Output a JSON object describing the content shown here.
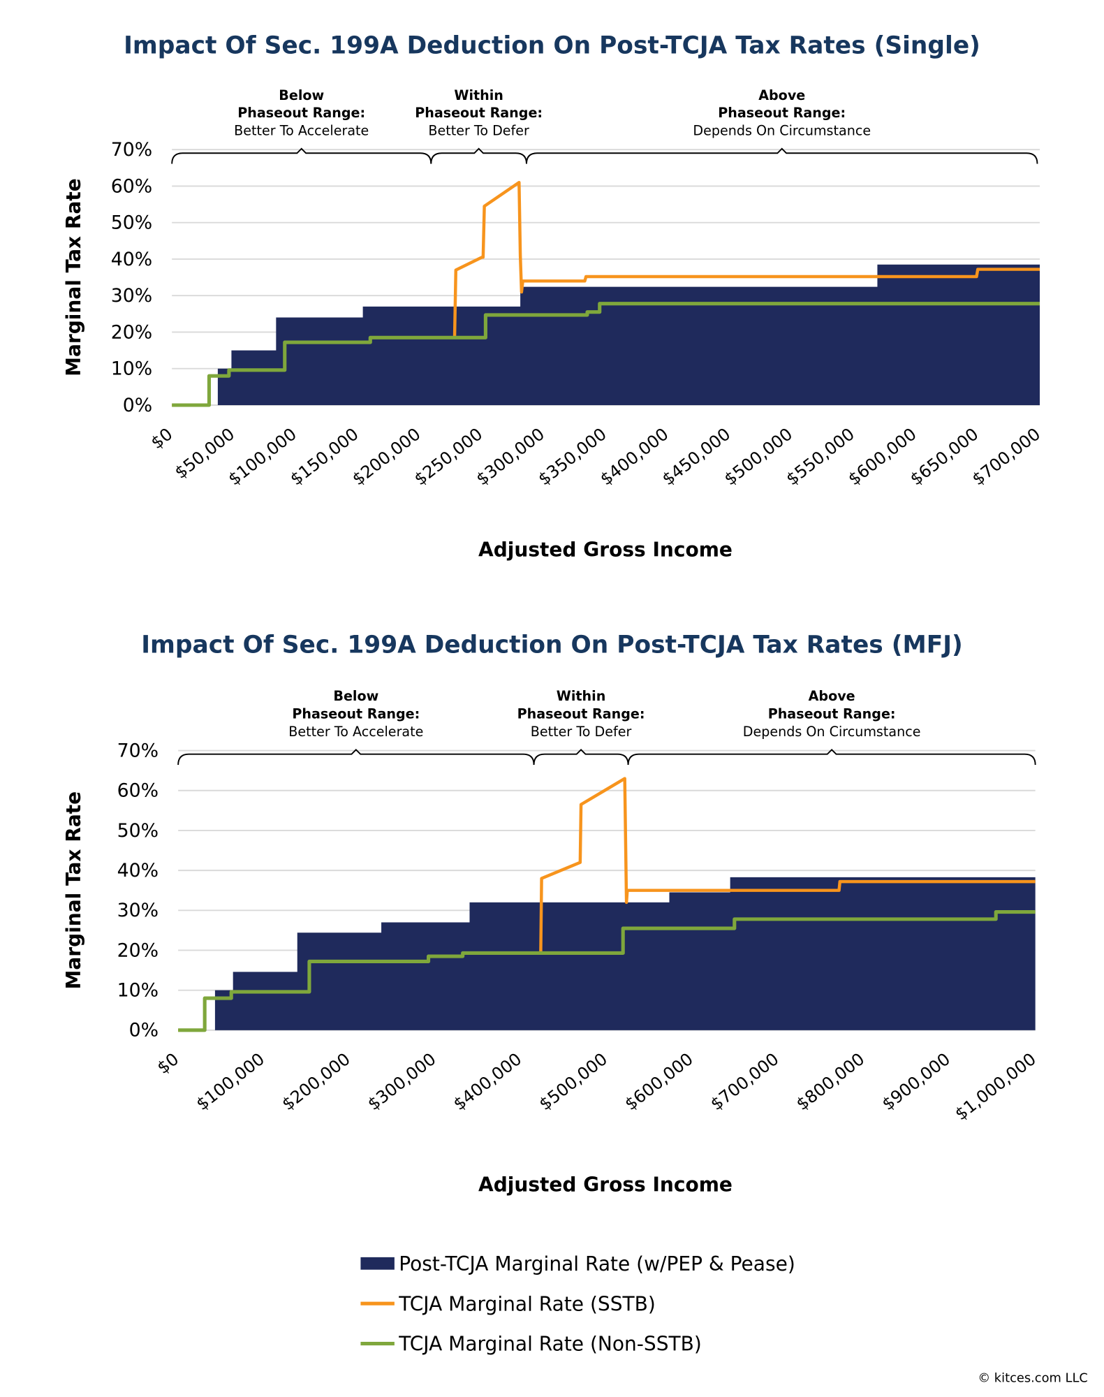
{
  "colors": {
    "base": "#1f2a5c",
    "sstb": "#f7941d",
    "nonsstb": "#7fa73c",
    "title": "#17375e",
    "grid": "#d9d9d9"
  },
  "legend": [
    {
      "label": "Post-TCJA Marginal Rate (w/PEP & Pease)",
      "series": "base"
    },
    {
      "label": "TCJA Marginal Rate (SSTB)",
      "series": "sstb"
    },
    {
      "label": "TCJA Marginal Rate (Non-SSTB)",
      "series": "nonsstb"
    }
  ],
  "copyright": "© kitces.com LLC",
  "chart_data": [
    {
      "type": "area+line",
      "title": "Impact Of Sec. 199A Deduction On Post-TCJA Tax Rates (Single)",
      "xlabel": "Adjusted Gross Income",
      "ylabel": "Marginal Tax Rate",
      "xlim": [
        0,
        700000
      ],
      "ylim": [
        0,
        70
      ],
      "grid": true,
      "yticks": [
        "0%",
        "10%",
        "20%",
        "30%",
        "40%",
        "50%",
        "60%",
        "70%"
      ],
      "xticks": [
        "$0",
        "$50,000",
        "$100,000",
        "$150,000",
        "$200,000",
        "$250,000",
        "$300,000",
        "$350,000",
        "$400,000",
        "$450,000",
        "$500,000",
        "$550,000",
        "$600,000",
        "$650,000",
        "$700,000"
      ],
      "braces": [
        {
          "head": "Below",
          "head2": "Phaseout Range:",
          "sub": "Better To Accelerate",
          "from": 0,
          "to": 209000
        },
        {
          "head": "Within",
          "head2": "Phaseout Range:",
          "sub": "Better To Defer",
          "from": 209000,
          "to": 286000
        },
        {
          "head": "Above",
          "head2": "Phaseout Range:",
          "sub": "Depends On Circumstance",
          "from": 286000,
          "to": 698000
        }
      ],
      "series": [
        {
          "key": "base",
          "name": "Post-TCJA Marginal Rate (w/PEP & Pease)",
          "kind": "step-area",
          "points": [
            [
              37000,
              10
            ],
            [
              48000,
              15
            ],
            [
              84000,
              24
            ],
            [
              154000,
              27
            ],
            [
              281000,
              32.4
            ],
            [
              569000,
              38.5
            ],
            [
              700000,
              38.5
            ]
          ]
        },
        {
          "key": "sstb",
          "name": "TCJA Marginal Rate (SSTB)",
          "kind": "line",
          "points": [
            [
              0,
              0
            ],
            [
              30000,
              0
            ],
            [
              30000,
              8
            ],
            [
              46000,
              8
            ],
            [
              46000,
              9.6
            ],
            [
              91000,
              9.6
            ],
            [
              91000,
              17.2
            ],
            [
              160000,
              17.2
            ],
            [
              160000,
              18.5
            ],
            [
              228000,
              18.5
            ],
            [
              229000,
              37
            ],
            [
              250000,
              40.5
            ],
            [
              251000,
              40.5
            ],
            [
              252000,
              54.5
            ],
            [
              280000,
              61
            ],
            [
              281000,
              41
            ],
            [
              282000,
              31
            ],
            [
              283000,
              34
            ],
            [
              333000,
              34
            ],
            [
              334000,
              35.2
            ],
            [
              649000,
              35.2
            ],
            [
              650000,
              37.2
            ],
            [
              700000,
              37.2
            ]
          ]
        },
        {
          "key": "nonsstb",
          "name": "TCJA Marginal Rate (Non-SSTB)",
          "kind": "line",
          "points": [
            [
              0,
              0
            ],
            [
              30000,
              0
            ],
            [
              30000,
              8
            ],
            [
              46000,
              8
            ],
            [
              46000,
              9.6
            ],
            [
              91000,
              9.6
            ],
            [
              91000,
              17.2
            ],
            [
              160000,
              17.2
            ],
            [
              160000,
              18.5
            ],
            [
              253000,
              18.5
            ],
            [
              253000,
              24.7
            ],
            [
              335000,
              24.7
            ],
            [
              335000,
              25.5
            ],
            [
              345000,
              25.5
            ],
            [
              345000,
              27.8
            ],
            [
              700000,
              27.8
            ]
          ]
        }
      ]
    },
    {
      "type": "area+line",
      "title": "Impact Of Sec. 199A Deduction On Post-TCJA Tax Rates (MFJ)",
      "xlabel": "Adjusted Gross Income",
      "ylabel": "Marginal Tax Rate",
      "xlim": [
        0,
        1000000
      ],
      "ylim": [
        0,
        70
      ],
      "grid": true,
      "yticks": [
        "0%",
        "10%",
        "20%",
        "30%",
        "40%",
        "50%",
        "60%",
        "70%"
      ],
      "xticks": [
        "$0",
        "$100,000",
        "$200,000",
        "$300,000",
        "$400,000",
        "$500,000",
        "$600,000",
        "$700,000",
        "$800,000",
        "$900,000",
        "$1,000,000"
      ],
      "braces": [
        {
          "head": "Below",
          "head2": "Phaseout Range:",
          "sub": "Better To Accelerate",
          "from": 0,
          "to": 415000
        },
        {
          "head": "Within",
          "head2": "Phaseout Range:",
          "sub": "Better To Defer",
          "from": 415000,
          "to": 525000
        },
        {
          "head": "Above",
          "head2": "Phaseout Range:",
          "sub": "Depends On Circumstance",
          "from": 525000,
          "to": 1000000
        }
      ],
      "series": [
        {
          "key": "base",
          "name": "Post-TCJA Marginal Rate (w/PEP & Pease)",
          "kind": "step-area",
          "points": [
            [
              43000,
              10
            ],
            [
              64000,
              14.6
            ],
            [
              139000,
              24.4
            ],
            [
              237000,
              27
            ],
            [
              340000,
              32
            ],
            [
              573000,
              34.5
            ],
            [
              644000,
              38.3
            ],
            [
              1000000,
              38.3
            ]
          ]
        },
        {
          "key": "sstb",
          "name": "TCJA Marginal Rate (SSTB)",
          "kind": "line",
          "points": [
            [
              0,
              0
            ],
            [
              31000,
              0
            ],
            [
              31000,
              8
            ],
            [
              62000,
              8
            ],
            [
              62000,
              9.6
            ],
            [
              153000,
              9.6
            ],
            [
              153000,
              17.2
            ],
            [
              292000,
              17.2
            ],
            [
              292000,
              18.5
            ],
            [
              332000,
              18.5
            ],
            [
              332000,
              19.3
            ],
            [
              423000,
              19.3
            ],
            [
              424000,
              38
            ],
            [
              469000,
              42
            ],
            [
              470000,
              56.5
            ],
            [
              521000,
              63
            ],
            [
              523000,
              32
            ],
            [
              524000,
              35
            ],
            [
              771000,
              35
            ],
            [
              772000,
              37.2
            ],
            [
              1000000,
              37.2
            ]
          ]
        },
        {
          "key": "nonsstb",
          "name": "TCJA Marginal Rate (Non-SSTB)",
          "kind": "line",
          "points": [
            [
              0,
              0
            ],
            [
              31000,
              0
            ],
            [
              31000,
              8
            ],
            [
              62000,
              8
            ],
            [
              62000,
              9.6
            ],
            [
              153000,
              9.6
            ],
            [
              153000,
              17.2
            ],
            [
              292000,
              17.2
            ],
            [
              292000,
              18.5
            ],
            [
              332000,
              18.5
            ],
            [
              332000,
              19.3
            ],
            [
              519000,
              19.3
            ],
            [
              519000,
              25.5
            ],
            [
              649000,
              25.5
            ],
            [
              649000,
              27.8
            ],
            [
              954000,
              27.8
            ],
            [
              954000,
              29.6
            ],
            [
              1000000,
              29.6
            ]
          ]
        }
      ]
    }
  ]
}
